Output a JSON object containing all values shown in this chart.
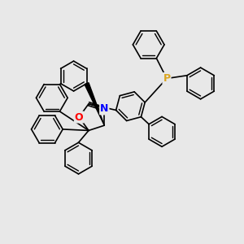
{
  "bg_color": "#e8e8e8",
  "atom_colors": {
    "N": "#0000FF",
    "O": "#FF0000",
    "P": "#DAA520",
    "C": "#000000"
  },
  "line_color": "#000000",
  "line_width": 1.2,
  "font_size_atom": 8,
  "figsize": [
    3.0,
    3.0
  ],
  "dpi": 100
}
